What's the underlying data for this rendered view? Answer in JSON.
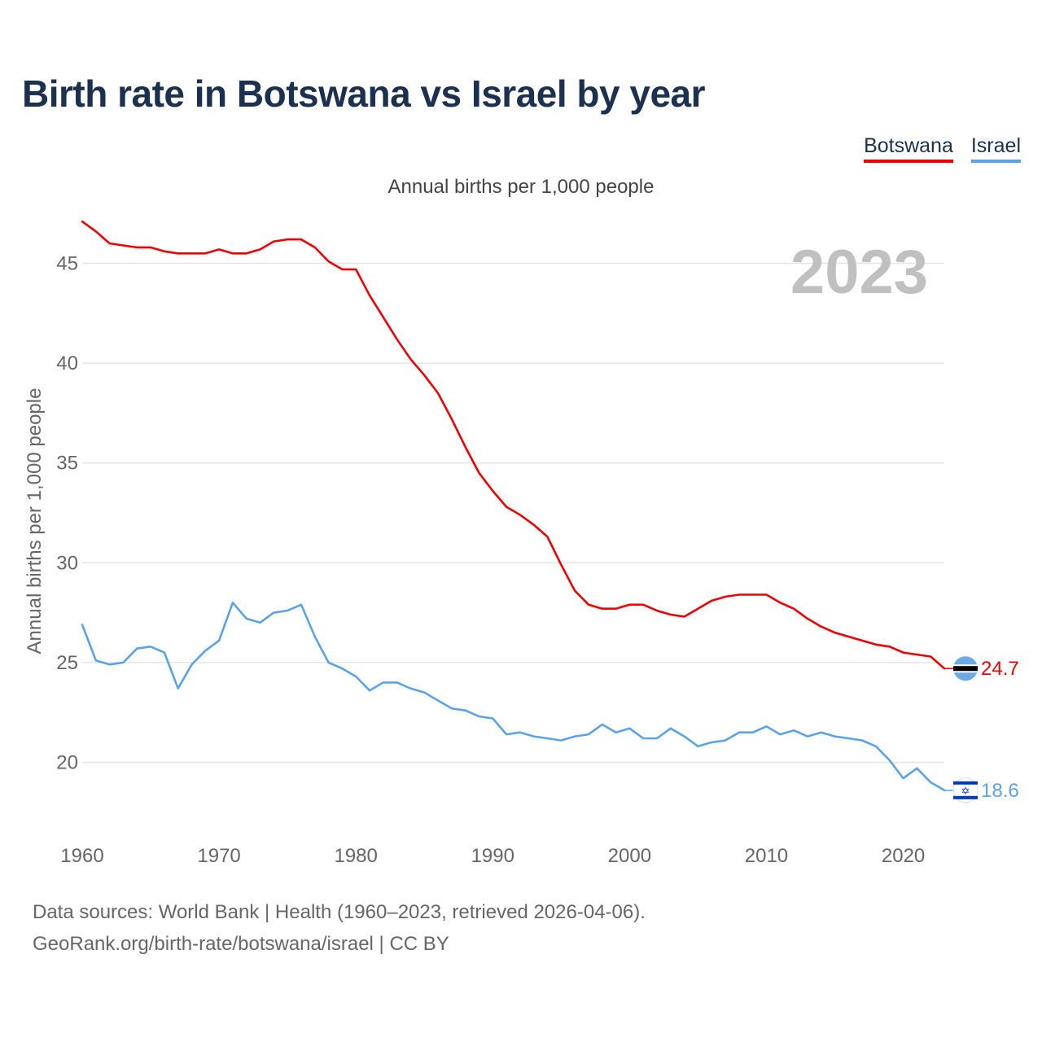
{
  "title": "Birth rate in Botswana vs Israel by year",
  "subtitle": "Annual births per 1,000 people",
  "year_watermark": "2023",
  "colors": {
    "botswana": "#ee0000",
    "israel": "#5ba3e8",
    "title": "#1c3150",
    "grid": "#e6e6e6",
    "axis_text": "#666666",
    "watermark": "#c0c0c0"
  },
  "legend": [
    {
      "label": "Botswana",
      "color": "#ee0000"
    },
    {
      "label": "Israel",
      "color": "#5ba3e8"
    }
  ],
  "source": {
    "line1": "Data sources: World Bank | Health (1960–2023, retrieved 2026-04-06).",
    "line2": "GeoRank.org/birth-rate/botswana/israel | CC BY"
  },
  "chart_data": {
    "type": "line",
    "title": "Birth rate in Botswana vs Israel by year",
    "xlabel": "",
    "ylabel": "Annual births per 1,000 people",
    "xlim": [
      1960,
      2023
    ],
    "ylim": [
      17,
      48
    ],
    "x_ticks": [
      1960,
      1970,
      1980,
      1990,
      2000,
      2010,
      2020
    ],
    "y_ticks": [
      20,
      25,
      30,
      35,
      40,
      45
    ],
    "grid": true,
    "legend_position": "top-right",
    "x": [
      1960,
      1961,
      1962,
      1963,
      1964,
      1965,
      1966,
      1967,
      1968,
      1969,
      1970,
      1971,
      1972,
      1973,
      1974,
      1975,
      1976,
      1977,
      1978,
      1979,
      1980,
      1981,
      1982,
      1983,
      1984,
      1985,
      1986,
      1987,
      1988,
      1989,
      1990,
      1991,
      1992,
      1993,
      1994,
      1995,
      1996,
      1997,
      1998,
      1999,
      2000,
      2001,
      2002,
      2003,
      2004,
      2005,
      2006,
      2007,
      2008,
      2009,
      2010,
      2011,
      2012,
      2013,
      2014,
      2015,
      2016,
      2017,
      2018,
      2019,
      2020,
      2021,
      2022,
      2023
    ],
    "series": [
      {
        "name": "Botswana",
        "color": "#ee0000",
        "end_label": "24.7",
        "values": [
          47.1,
          46.6,
          46.0,
          45.9,
          45.8,
          45.8,
          45.6,
          45.5,
          45.5,
          45.5,
          45.7,
          45.5,
          45.5,
          45.7,
          46.1,
          46.2,
          46.2,
          45.8,
          45.1,
          44.7,
          44.7,
          43.4,
          42.3,
          41.2,
          40.2,
          39.4,
          38.5,
          37.2,
          35.8,
          34.5,
          33.6,
          32.8,
          32.4,
          31.9,
          31.3,
          29.9,
          28.6,
          27.9,
          27.7,
          27.7,
          27.9,
          27.9,
          27.6,
          27.4,
          27.3,
          27.7,
          28.1,
          28.3,
          28.4,
          28.4,
          28.4,
          28.0,
          27.7,
          27.2,
          26.8,
          26.5,
          26.3,
          26.1,
          25.9,
          25.8,
          25.5,
          25.4,
          25.3,
          24.7
        ]
      },
      {
        "name": "Israel",
        "color": "#5ba3e8",
        "end_label": "18.6",
        "values": [
          26.9,
          25.1,
          24.9,
          25.0,
          25.7,
          25.8,
          25.5,
          23.7,
          24.9,
          25.6,
          26.1,
          28.0,
          27.2,
          27.0,
          27.5,
          27.6,
          27.9,
          26.3,
          25.0,
          24.7,
          24.3,
          23.6,
          24.0,
          24.0,
          23.7,
          23.5,
          23.1,
          22.7,
          22.6,
          22.3,
          22.2,
          21.4,
          21.5,
          21.3,
          21.2,
          21.1,
          21.3,
          21.4,
          21.9,
          21.5,
          21.7,
          21.2,
          21.2,
          21.7,
          21.3,
          20.8,
          21.0,
          21.1,
          21.5,
          21.5,
          21.8,
          21.4,
          21.6,
          21.3,
          21.5,
          21.3,
          21.2,
          21.1,
          20.8,
          20.1,
          19.2,
          19.7,
          19.0,
          18.6
        ]
      }
    ]
  }
}
